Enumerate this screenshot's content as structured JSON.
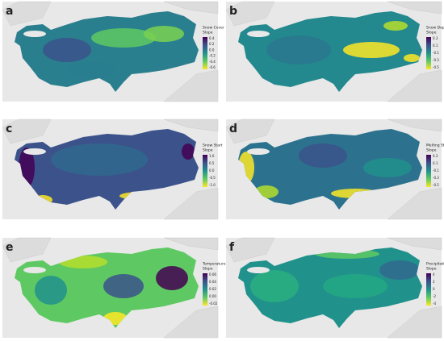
{
  "panels": [
    {
      "label": "a",
      "legend_title": [
        "Snow Cover",
        "Slope"
      ],
      "ticks": [
        "0.4",
        "0.2",
        "0.0",
        "-0.2",
        "-0.4",
        "-0.6"
      ]
    },
    {
      "label": "b",
      "legend_title": [
        "Snow Depth",
        "Slope"
      ],
      "ticks": [
        "0.3",
        "0.1",
        "-0.1",
        "-0.3",
        "-0.5"
      ]
    },
    {
      "label": "c",
      "legend_title": [
        "Snow Start",
        "Slope"
      ],
      "ticks": [
        "1.0",
        "0.5",
        "0.0",
        "-0.5",
        "-1.0"
      ]
    },
    {
      "label": "d",
      "legend_title": [
        "Melting Start",
        "Slope"
      ],
      "ticks": [
        "0.3",
        "0.1",
        "-0.1",
        "-0.3",
        "-0.5"
      ]
    },
    {
      "label": "e",
      "legend_title": [
        "Temperature",
        "Slope"
      ],
      "ticks": [
        "0.06",
        "0.04",
        "0.02",
        "0.00",
        "-0.02"
      ]
    },
    {
      "label": "f",
      "legend_title": [
        "Precipitation",
        "Slope"
      ],
      "ticks": [
        "4",
        "2",
        "0",
        "-2",
        "-4"
      ]
    }
  ]
}
